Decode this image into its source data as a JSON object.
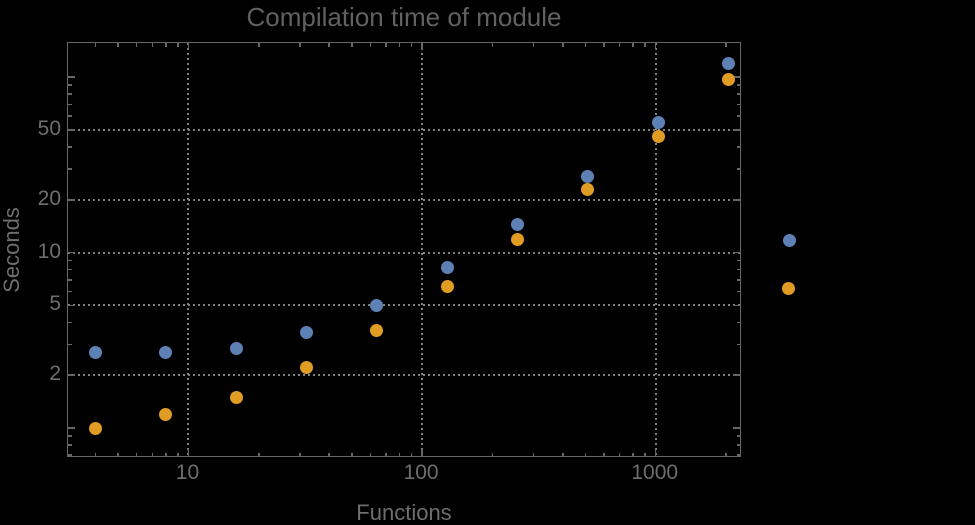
{
  "figure": {
    "title": "Compilation time of module",
    "xlabel": "Functions",
    "ylabel": "Seconds",
    "background": "#000000"
  },
  "chart_data": {
    "type": "scatter",
    "title": "Compilation time of module",
    "xlabel": "Functions",
    "ylabel": "Seconds",
    "x_scale": "log",
    "y_scale": "log",
    "x": [
      4,
      8,
      16,
      32,
      64,
      128,
      256,
      512,
      1024,
      2048
    ],
    "series": [
      {
        "name": "series-1-blue",
        "color": "#5E81B5",
        "values": [
          2.7,
          2.7,
          2.85,
          3.5,
          5.0,
          8.2,
          14.4,
          27,
          55,
          120
        ]
      },
      {
        "name": "series-2-orange",
        "color": "#E19C24",
        "values": [
          1.0,
          1.2,
          1.5,
          2.2,
          3.6,
          6.4,
          11.9,
          23,
          46,
          97
        ]
      }
    ],
    "x_range": [
      3.05,
      2340
    ],
    "y_range": [
      0.675,
      156.5
    ],
    "x_ticks_labeled": [
      10,
      100,
      1000
    ],
    "x_tick_labels": [
      "10",
      "100",
      "1000"
    ],
    "y_ticks_labeled": [
      2,
      5,
      10,
      20,
      50
    ],
    "y_tick_labels": [
      "2",
      "5",
      "10",
      "20",
      "50"
    ],
    "grid": {
      "x_values": [
        10,
        100,
        1000
      ],
      "y_values": [
        2,
        5,
        10,
        20,
        50
      ],
      "style": "dotted",
      "color": "#828282"
    },
    "legend": {
      "position": "outside-right",
      "entries": [
        {
          "label": "",
          "color": "#5E81B5"
        },
        {
          "label": "",
          "color": "#E19C24"
        }
      ]
    },
    "colors": {
      "background": "#000000",
      "frame": "#666666",
      "text": "#6e6e6e",
      "title": "#616161"
    }
  }
}
